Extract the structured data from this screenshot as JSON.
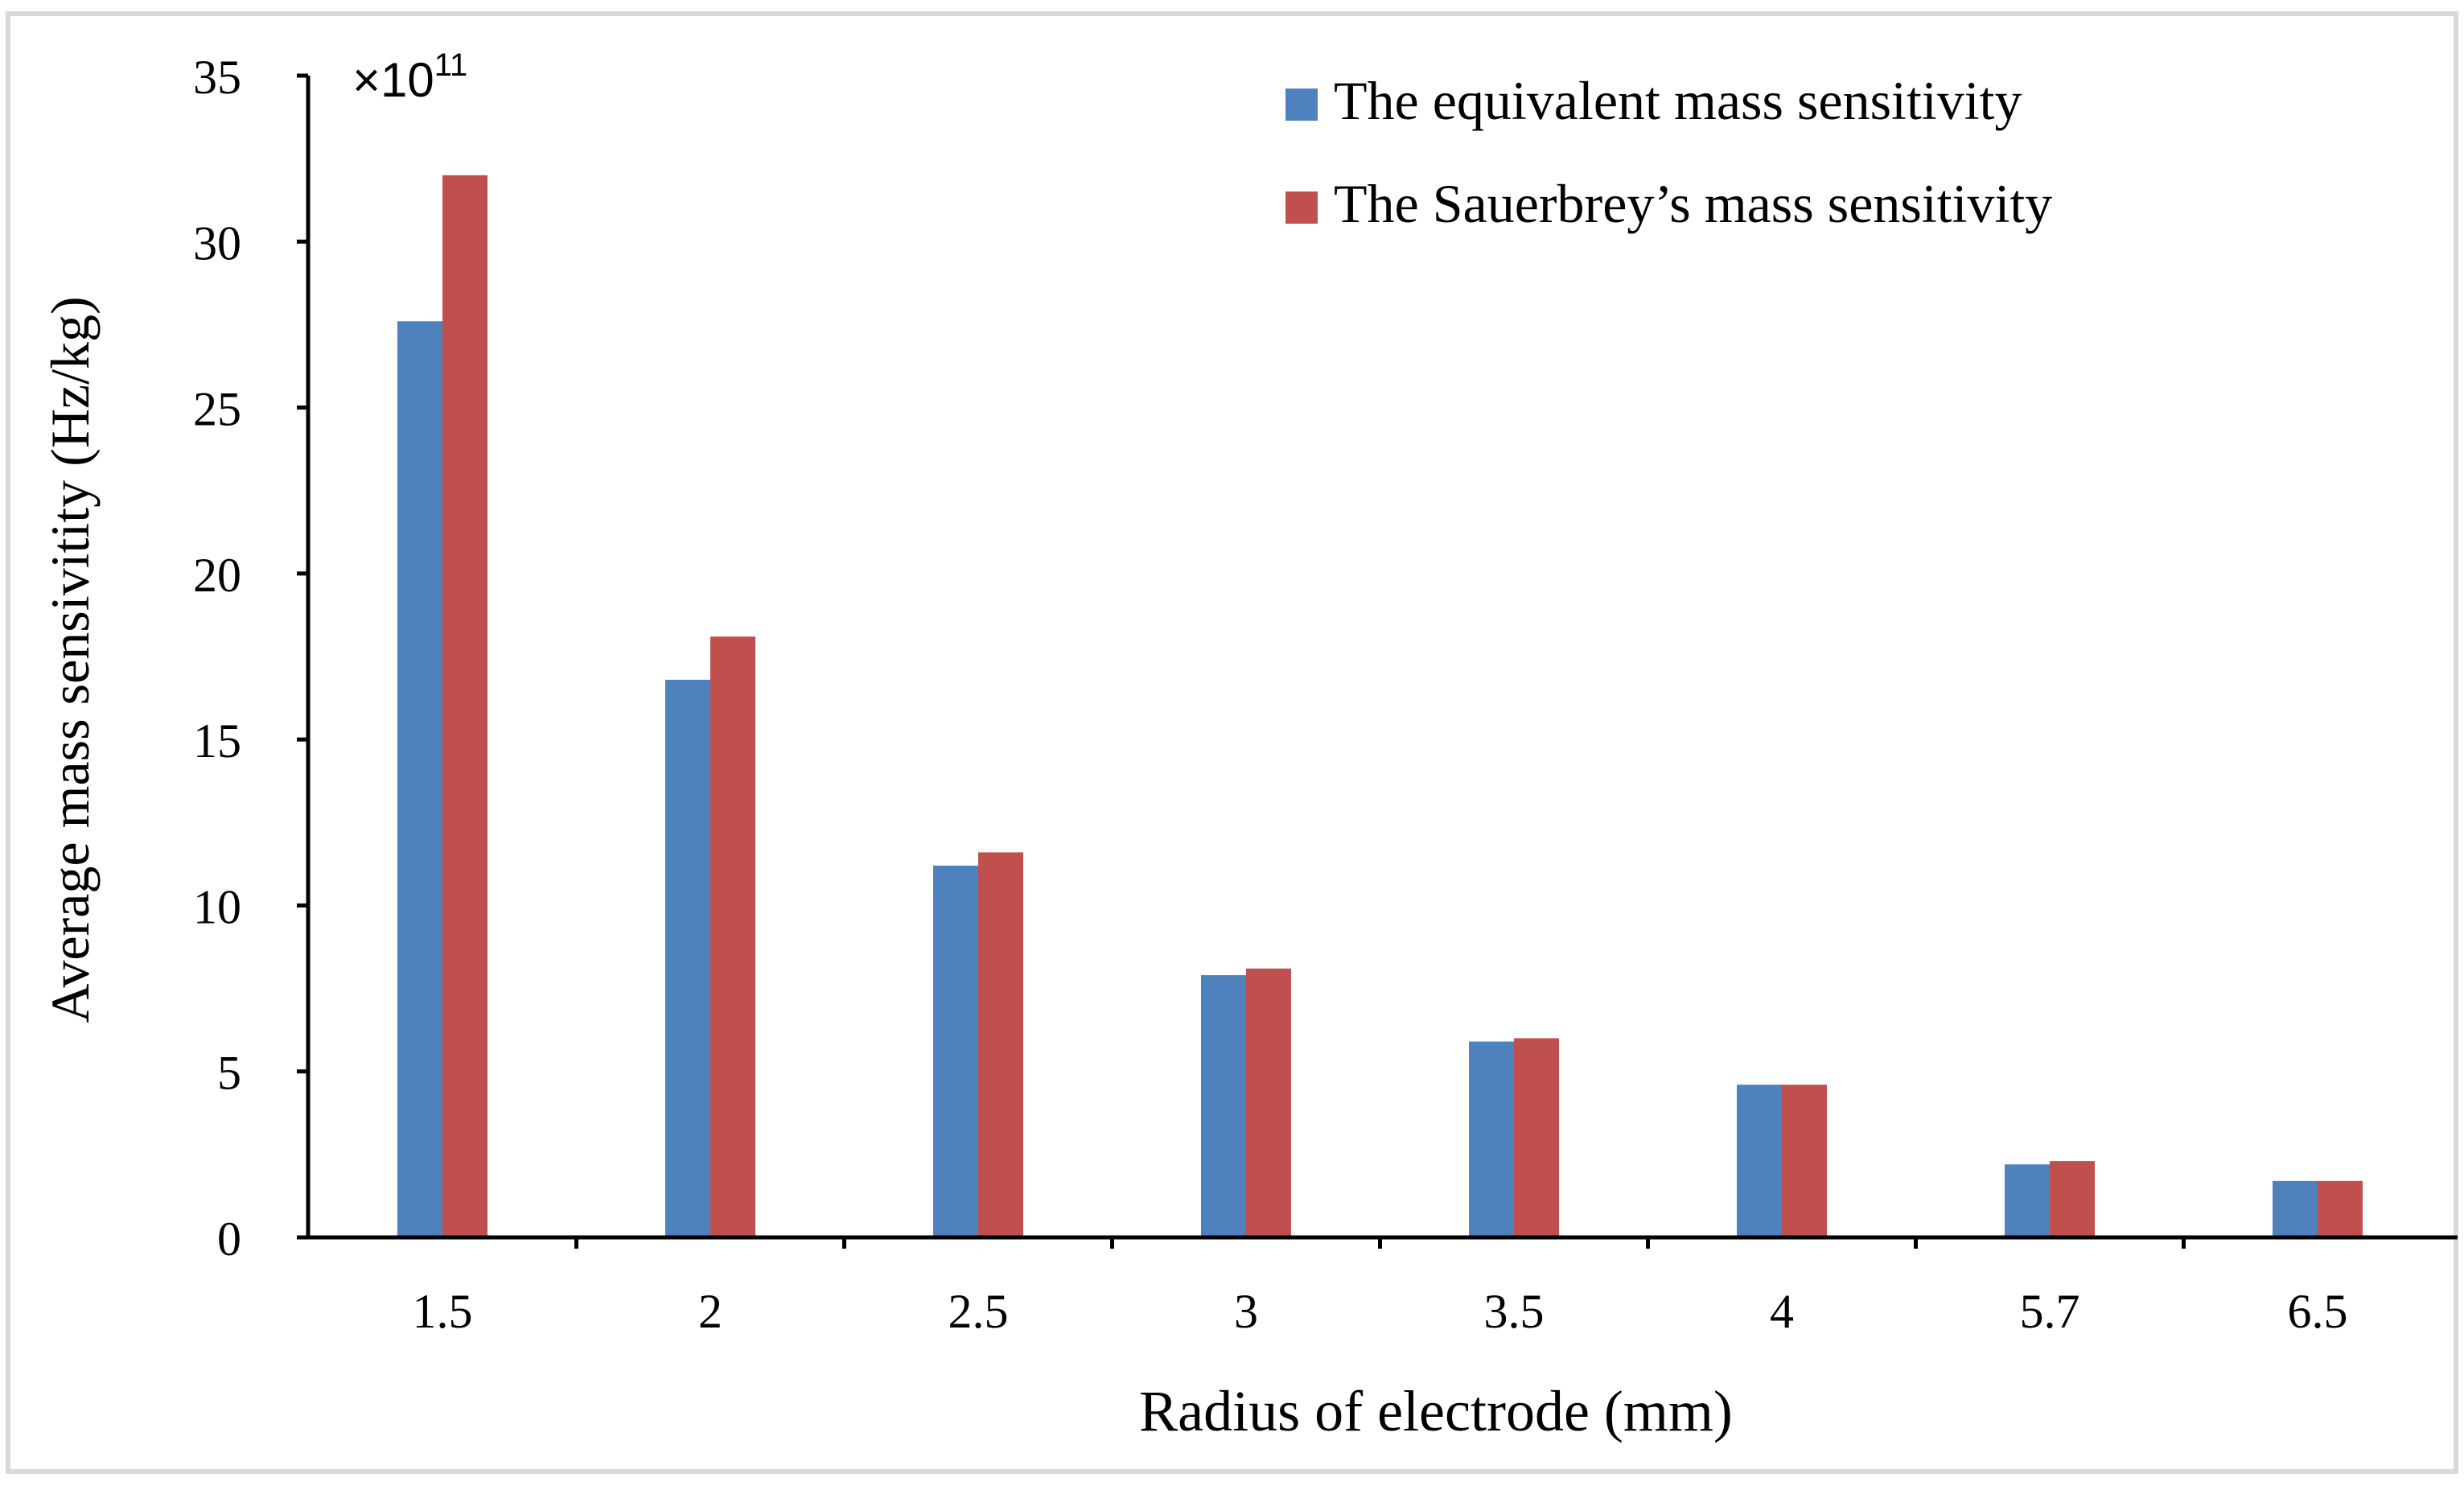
{
  "chart_data": {
    "type": "bar",
    "title": "",
    "xlabel": "Radius of electrode (mm)",
    "ylabel": "Average mass sensivitity (Hz/kg)",
    "scale_prefix": "×10",
    "scale_exponent": "11",
    "ylim": [
      0,
      35
    ],
    "yticks": [
      "0",
      "5",
      "10",
      "15",
      "20",
      "25",
      "30",
      "35"
    ],
    "categories": [
      "1.5",
      "2",
      "2.5",
      "3",
      "3.5",
      "4",
      "5.7",
      "6.5"
    ],
    "legend_position": "top-right",
    "series": [
      {
        "name": "The equivalent mass sensitivity",
        "color": "#4F81BD",
        "values": [
          27.6,
          16.8,
          11.2,
          7.9,
          5.9,
          4.6,
          2.2,
          1.7
        ]
      },
      {
        "name": "The Sauerbrey’s mass sensitivity",
        "color": "#C0504D",
        "values": [
          32.0,
          18.1,
          11.6,
          8.1,
          6.0,
          4.6,
          2.3,
          1.7
        ]
      }
    ]
  }
}
